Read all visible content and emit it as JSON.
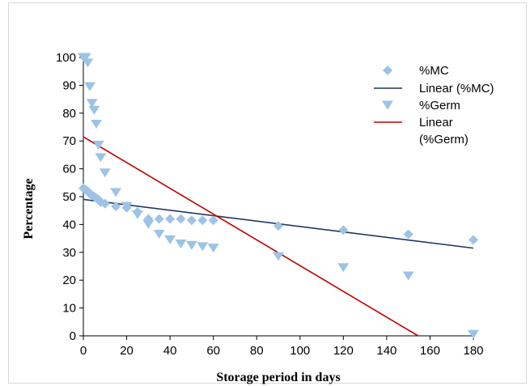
{
  "chart_data": {
    "type": "scatter",
    "title": "",
    "xlabel": "Storage period in days",
    "ylabel": "Percentage",
    "xlim": [
      0,
      180
    ],
    "ylim": [
      0,
      100
    ],
    "xticks": [
      0,
      20,
      40,
      60,
      80,
      100,
      120,
      140,
      160,
      180
    ],
    "yticks": [
      0,
      10,
      20,
      30,
      40,
      50,
      60,
      70,
      80,
      90,
      100
    ],
    "grid": false,
    "legend_position": "top-right",
    "series": [
      {
        "name": "%MC",
        "kind": "scatter",
        "marker": "diamond",
        "color": "#9dc3e6",
        "x": [
          0,
          1,
          2,
          3,
          4,
          5,
          6,
          7,
          8,
          10,
          15,
          20,
          25,
          30,
          35,
          40,
          45,
          50,
          55,
          60,
          90,
          120,
          150,
          180
        ],
        "y": [
          53,
          52.5,
          52,
          51,
          50.5,
          50,
          49.5,
          49,
          48,
          47.5,
          46.5,
          46,
          44.5,
          42,
          42,
          42,
          42,
          41.5,
          41.5,
          41.5,
          39.5,
          38,
          36.5,
          34.5
        ]
      },
      {
        "name": "Linear (%MC)",
        "kind": "line",
        "color": "#1f3864",
        "x": [
          0,
          180
        ],
        "y": [
          49,
          31.5
        ]
      },
      {
        "name": "%Germ",
        "kind": "scatter",
        "marker": "triangle-down",
        "color": "#9dc3e6",
        "x": [
          0,
          1,
          2,
          3,
          4,
          5,
          6,
          7,
          8,
          10,
          15,
          20,
          25,
          30,
          35,
          40,
          45,
          50,
          55,
          60,
          90,
          120,
          150,
          180
        ],
        "y": [
          100,
          100,
          98,
          89.5,
          83.5,
          81,
          76,
          68.5,
          64,
          58.5,
          51.5,
          46.5,
          43.5,
          40,
          36.5,
          34.5,
          33,
          32.5,
          32,
          31.5,
          28.5,
          24.5,
          21.5,
          0.5
        ]
      },
      {
        "name": "Linear (%Germ)",
        "kind": "line",
        "color": "#c00000",
        "x": [
          0,
          154.5
        ],
        "y": [
          71.5,
          0
        ]
      }
    ],
    "legend": [
      {
        "label_lines": [
          "%MC"
        ],
        "series": 0
      },
      {
        "label_lines": [
          "Linear (%MC)"
        ],
        "series": 1
      },
      {
        "label_lines": [
          "%Germ"
        ],
        "series": 2
      },
      {
        "label_lines": [
          "Linear",
          "(%Germ)"
        ],
        "series": 3
      }
    ]
  }
}
